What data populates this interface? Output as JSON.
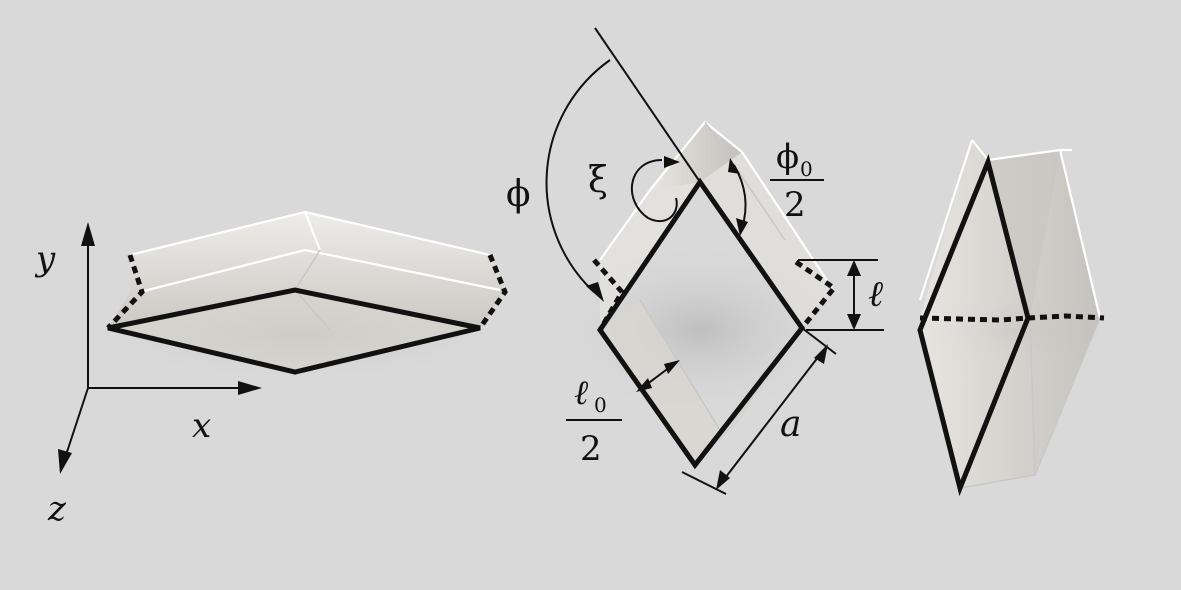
{
  "figure": {
    "background_color": "#d9d9d9",
    "line_color": "#111111",
    "solid_color": "#ebe8e2"
  },
  "axes": {
    "y_label": "y",
    "x_label": "x",
    "z_label": "z"
  },
  "labels": {
    "phi": "ϕ",
    "xi": "ξ",
    "phi0_num": "ϕ",
    "phi0_sub": "0",
    "phi0_den": "2",
    "ell": "ℓ",
    "ell0_num": "ℓ",
    "ell0_sub": "0",
    "ell0_den": "2",
    "a": "a"
  }
}
